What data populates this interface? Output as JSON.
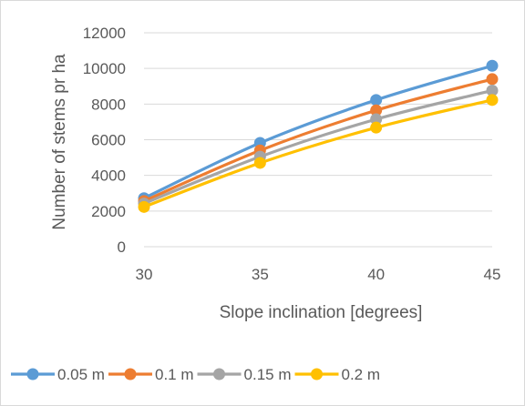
{
  "chart_data": {
    "type": "line",
    "title": "",
    "xlabel": "Slope inclination [degrees]",
    "ylabel": "Number of stems pr ha",
    "x": [
      30,
      35,
      40,
      45
    ],
    "xlim": [
      30,
      45
    ],
    "ylim": [
      0,
      12000
    ],
    "yticks": [
      0,
      2000,
      4000,
      6000,
      8000,
      10000,
      12000
    ],
    "grid": true,
    "legend_position": "bottom",
    "series": [
      {
        "name": "0.05 m",
        "color": "#5B9BD5",
        "values": [
          2720,
          5820,
          8230,
          10150
        ]
      },
      {
        "name": "0.1 m",
        "color": "#ED7D31",
        "values": [
          2560,
          5400,
          7650,
          9400
        ]
      },
      {
        "name": "0.15 m",
        "color": "#A5A5A5",
        "values": [
          2420,
          5050,
          7150,
          8760
        ]
      },
      {
        "name": "0.2 m",
        "color": "#FFC000",
        "values": [
          2230,
          4700,
          6680,
          8230
        ]
      }
    ]
  }
}
